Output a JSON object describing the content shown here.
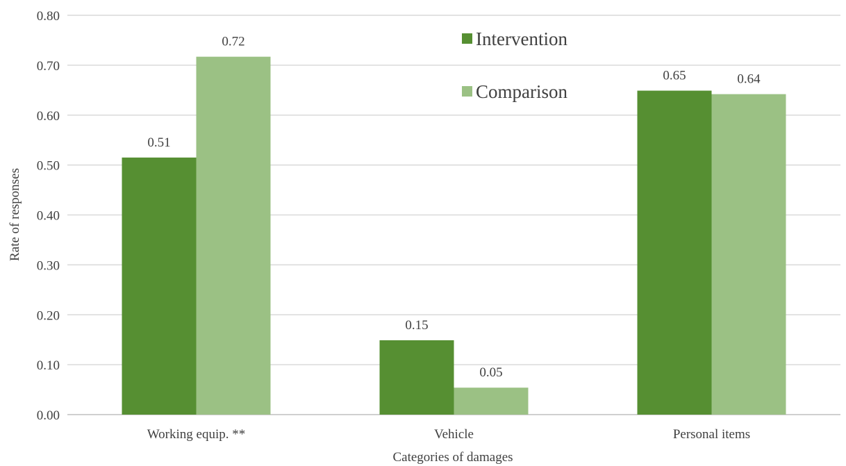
{
  "chart_data": {
    "type": "bar",
    "title": "",
    "xlabel": "Categories of damages",
    "ylabel": "Rate of responses",
    "ylim": [
      0,
      0.8
    ],
    "yticks": [
      "0.00",
      "0.10",
      "0.20",
      "0.30",
      "0.40",
      "0.50",
      "0.60",
      "0.70",
      "0.80"
    ],
    "categories": [
      "Working equip. **",
      "Vehicle",
      "Personal items"
    ],
    "series": [
      {
        "name": "Intervention",
        "color": "#568f32",
        "values": [
          0.515,
          0.149,
          0.649
        ],
        "labels": [
          "0.51",
          "0.15",
          "0.65"
        ]
      },
      {
        "name": "Comparison",
        "color": "#9bc184",
        "values": [
          0.717,
          0.054,
          0.642
        ],
        "labels": [
          "0.72",
          "0.05",
          "0.64"
        ]
      }
    ],
    "grid": true,
    "legend_position": "top-center"
  }
}
